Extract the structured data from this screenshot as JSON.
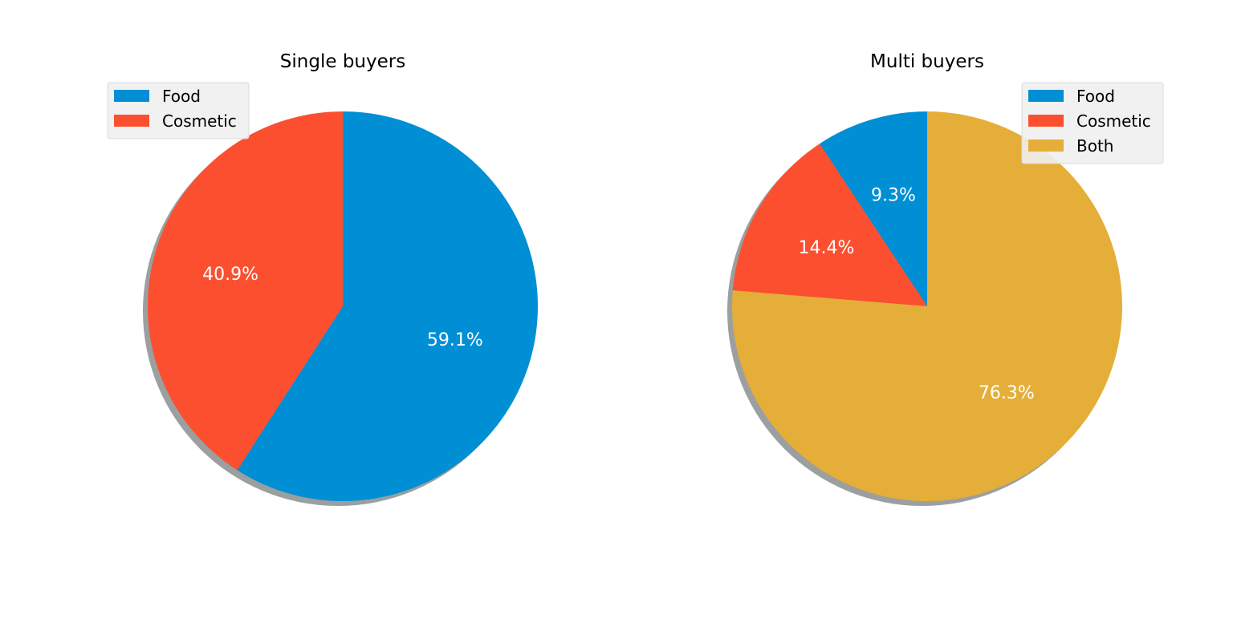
{
  "chart_data": [
    {
      "type": "pie",
      "title": "Single buyers",
      "labels": [
        "Food",
        "Cosmetic"
      ],
      "values": [
        59.1,
        40.9
      ],
      "autopct_labels": [
        "59.1%",
        "40.9%"
      ],
      "colors": [
        "#008fd5",
        "#fc4f30"
      ],
      "start_angle_deg": 90,
      "direction": "clockwise",
      "shadow": true,
      "legend": {
        "position": "upper-left",
        "entries": [
          "Food",
          "Cosmetic"
        ]
      }
    },
    {
      "type": "pie",
      "title": "Multi buyers",
      "labels": [
        "Food",
        "Cosmetic",
        "Both"
      ],
      "values": [
        9.3,
        14.4,
        76.3
      ],
      "autopct_labels": [
        "9.3%",
        "14.4%",
        "76.3%"
      ],
      "colors": [
        "#008fd5",
        "#fc4f30",
        "#e5ae38"
      ],
      "start_angle_deg": 90,
      "direction": "counterclockwise",
      "shadow": true,
      "legend": {
        "position": "upper-right",
        "entries": [
          "Food",
          "Cosmetic",
          "Both"
        ]
      }
    }
  ]
}
